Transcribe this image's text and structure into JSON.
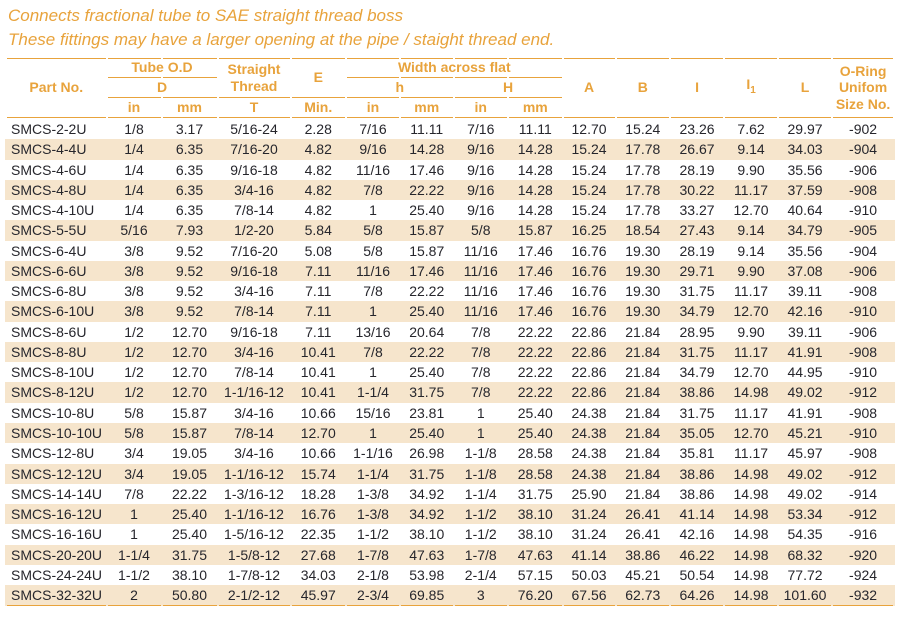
{
  "intro": {
    "line1": "Connects fractional tube to SAE straight thread boss",
    "line2": "These fittings may have a larger opening at the pipe / staight thread end."
  },
  "colors": {
    "accent_orange": "#E8A33C",
    "row_shade": "#F6E5CC",
    "body_text": "#26262C"
  },
  "table": {
    "header": {
      "part_no": "Part No.",
      "tube_od": "Tube O.D",
      "d": "D",
      "straight_thread": "Straight Thread",
      "e": "E",
      "min": "Min.",
      "t": "T",
      "width_across_flat": "Width across flat",
      "h_lower": "h",
      "h_upper": "H",
      "in": "in",
      "mm": "mm",
      "a": "A",
      "b": "B",
      "i": "I",
      "i1_base": "I",
      "i1_sub": "1",
      "l": "L",
      "o_ring": "O-Ring Unifom Size No."
    },
    "rows": [
      [
        "SMCS-2-2U",
        "1/8",
        "3.17",
        "5/16-24",
        "2.28",
        "7/16",
        "11.11",
        "7/16",
        "11.11",
        "12.70",
        "15.24",
        "23.26",
        "7.62",
        "29.97",
        "-902"
      ],
      [
        "SMCS-4-4U",
        "1/4",
        "6.35",
        "7/16-20",
        "4.82",
        "9/16",
        "14.28",
        "9/16",
        "14.28",
        "15.24",
        "17.78",
        "26.67",
        "9.14",
        "34.03",
        "-904"
      ],
      [
        "SMCS-4-6U",
        "1/4",
        "6.35",
        "9/16-18",
        "4.82",
        "11/16",
        "17.46",
        "9/16",
        "14.28",
        "15.24",
        "17.78",
        "28.19",
        "9.90",
        "35.56",
        "-906"
      ],
      [
        "SMCS-4-8U",
        "1/4",
        "6.35",
        "3/4-16",
        "4.82",
        "7/8",
        "22.22",
        "9/16",
        "14.28",
        "15.24",
        "17.78",
        "30.22",
        "11.17",
        "37.59",
        "-908"
      ],
      [
        "SMCS-4-10U",
        "1/4",
        "6.35",
        "7/8-14",
        "4.82",
        "1",
        "25.40",
        "9/16",
        "14.28",
        "15.24",
        "17.78",
        "33.27",
        "12.70",
        "40.64",
        "-910"
      ],
      [
        "SMCS-5-5U",
        "5/16",
        "7.93",
        "1/2-20",
        "5.84",
        "5/8",
        "15.87",
        "5/8",
        "15.87",
        "16.25",
        "18.54",
        "27.43",
        "9.14",
        "34.79",
        "-905"
      ],
      [
        "SMCS-6-4U",
        "3/8",
        "9.52",
        "7/16-20",
        "5.08",
        "5/8",
        "15.87",
        "11/16",
        "17.46",
        "16.76",
        "19.30",
        "28.19",
        "9.14",
        "35.56",
        "-904"
      ],
      [
        "SMCS-6-6U",
        "3/8",
        "9.52",
        "9/16-18",
        "7.11",
        "11/16",
        "17.46",
        "11/16",
        "17.46",
        "16.76",
        "19.30",
        "29.71",
        "9.90",
        "37.08",
        "-906"
      ],
      [
        "SMCS-6-8U",
        "3/8",
        "9.52",
        "3/4-16",
        "7.11",
        "7/8",
        "22.22",
        "11/16",
        "17.46",
        "16.76",
        "19.30",
        "31.75",
        "11.17",
        "39.11",
        "-908"
      ],
      [
        "SMCS-6-10U",
        "3/8",
        "9.52",
        "7/8-14",
        "7.11",
        "1",
        "25.40",
        "11/16",
        "17.46",
        "16.76",
        "19.30",
        "34.79",
        "12.70",
        "42.16",
        "-910"
      ],
      [
        "SMCS-8-6U",
        "1/2",
        "12.70",
        "9/16-18",
        "7.11",
        "13/16",
        "20.64",
        "7/8",
        "22.22",
        "22.86",
        "21.84",
        "28.95",
        "9.90",
        "39.11",
        "-906"
      ],
      [
        "SMCS-8-8U",
        "1/2",
        "12.70",
        "3/4-16",
        "10.41",
        "7/8",
        "22.22",
        "7/8",
        "22.22",
        "22.86",
        "21.84",
        "31.75",
        "11.17",
        "41.91",
        "-908"
      ],
      [
        "SMCS-8-10U",
        "1/2",
        "12.70",
        "7/8-14",
        "10.41",
        "1",
        "25.40",
        "7/8",
        "22.22",
        "22.86",
        "21.84",
        "34.79",
        "12.70",
        "44.95",
        "-910"
      ],
      [
        "SMCS-8-12U",
        "1/2",
        "12.70",
        "1-1/16-12",
        "10.41",
        "1-1/4",
        "31.75",
        "7/8",
        "22.22",
        "22.86",
        "21.84",
        "38.86",
        "14.98",
        "49.02",
        "-912"
      ],
      [
        "SMCS-10-8U",
        "5/8",
        "15.87",
        "3/4-16",
        "10.66",
        "15/16",
        "23.81",
        "1",
        "25.40",
        "24.38",
        "21.84",
        "31.75",
        "11.17",
        "41.91",
        "-908"
      ],
      [
        "SMCS-10-10U",
        "5/8",
        "15.87",
        "7/8-14",
        "12.70",
        "1",
        "25.40",
        "1",
        "25.40",
        "24.38",
        "21.84",
        "35.05",
        "12.70",
        "45.21",
        "-910"
      ],
      [
        "SMCS-12-8U",
        "3/4",
        "19.05",
        "3/4-16",
        "10.66",
        "1-1/16",
        "26.98",
        "1-1/8",
        "28.58",
        "24.38",
        "21.84",
        "35.81",
        "11.17",
        "45.97",
        "-908"
      ],
      [
        "SMCS-12-12U",
        "3/4",
        "19.05",
        "1-1/16-12",
        "15.74",
        "1-1/4",
        "31.75",
        "1-1/8",
        "28.58",
        "24.38",
        "21.84",
        "38.86",
        "14.98",
        "49.02",
        "-912"
      ],
      [
        "SMCS-14-14U",
        "7/8",
        "22.22",
        "1-3/16-12",
        "18.28",
        "1-3/8",
        "34.92",
        "1-1/4",
        "31.75",
        "25.90",
        "21.84",
        "38.86",
        "14.98",
        "49.02",
        "-914"
      ],
      [
        "SMCS-16-12U",
        "1",
        "25.40",
        "1-1/16-12",
        "16.76",
        "1-3/8",
        "34.92",
        "1-1/2",
        "38.10",
        "31.24",
        "26.41",
        "41.14",
        "14.98",
        "53.34",
        "-912"
      ],
      [
        "SMCS-16-16U",
        "1",
        "25.40",
        "1-5/16-12",
        "22.35",
        "1-1/2",
        "38.10",
        "1-1/2",
        "38.10",
        "31.24",
        "26.41",
        "42.16",
        "14.98",
        "54.35",
        "-916"
      ],
      [
        "SMCS-20-20U",
        "1-1/4",
        "31.75",
        "1-5/8-12",
        "27.68",
        "1-7/8",
        "47.63",
        "1-7/8",
        "47.63",
        "41.14",
        "38.86",
        "46.22",
        "14.98",
        "68.32",
        "-920"
      ],
      [
        "SMCS-24-24U",
        "1-1/2",
        "38.10",
        "1-7/8-12",
        "34.03",
        "2-1/8",
        "53.98",
        "2-1/4",
        "57.15",
        "50.03",
        "45.21",
        "50.54",
        "14.98",
        "77.72",
        "-924"
      ],
      [
        "SMCS-32-32U",
        "2",
        "50.80",
        "2-1/2-12",
        "45.97",
        "2-3/4",
        "69.85",
        "3",
        "76.20",
        "67.56",
        "62.73",
        "64.26",
        "14.98",
        "101.60",
        "-932"
      ]
    ]
  }
}
